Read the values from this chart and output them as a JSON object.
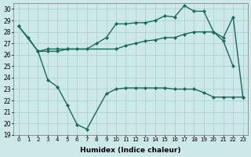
{
  "xlabel": "Humidex (Indice chaleur)",
  "ylim": [
    19,
    30.5
  ],
  "xlim": [
    -0.5,
    23.5
  ],
  "yticks": [
    19,
    20,
    21,
    22,
    23,
    24,
    25,
    26,
    27,
    28,
    29,
    30
  ],
  "bg_color": "#cce8e8",
  "grid_color": "#aacece",
  "line_color": "#1a6b5a",
  "line_width": 1.0,
  "marker_size": 2.5,
  "lineA_x": [
    0,
    1,
    2,
    3,
    4,
    5,
    6,
    7,
    8,
    9,
    10,
    11,
    12,
    13,
    14,
    15,
    16,
    17,
    18,
    19,
    20,
    21,
    22
  ],
  "lineA_y": [
    28.5,
    27.5,
    26.3,
    26.5,
    26.5,
    26.5,
    26.5,
    26.5,
    27.0,
    27.5,
    28.7,
    28.7,
    28.8,
    28.8,
    29.0,
    29.4,
    29.3,
    30.3,
    29.8,
    29.8,
    28.0,
    27.2,
    25.0
  ],
  "lineB_x": [
    0,
    2,
    3,
    4,
    5,
    10,
    11,
    12,
    13,
    14,
    15,
    16,
    17,
    18,
    19,
    20,
    21,
    22,
    23
  ],
  "lineB_y": [
    28.5,
    26.3,
    26.3,
    26.3,
    26.5,
    26.5,
    26.8,
    27.0,
    27.2,
    27.3,
    27.5,
    27.5,
    27.8,
    28.0,
    28.0,
    28.0,
    27.5,
    29.3,
    22.3
  ],
  "lineC_x": [
    2,
    3,
    4,
    5,
    6,
    7,
    9,
    10,
    11,
    12,
    13,
    14,
    15,
    16,
    17,
    18,
    19,
    20,
    21,
    22,
    23
  ],
  "lineC_y": [
    26.3,
    23.8,
    23.2,
    21.6,
    19.9,
    19.5,
    22.6,
    23.0,
    23.1,
    23.1,
    23.1,
    23.1,
    23.1,
    23.0,
    23.0,
    23.0,
    22.7,
    22.3,
    22.3,
    22.3,
    22.3
  ]
}
